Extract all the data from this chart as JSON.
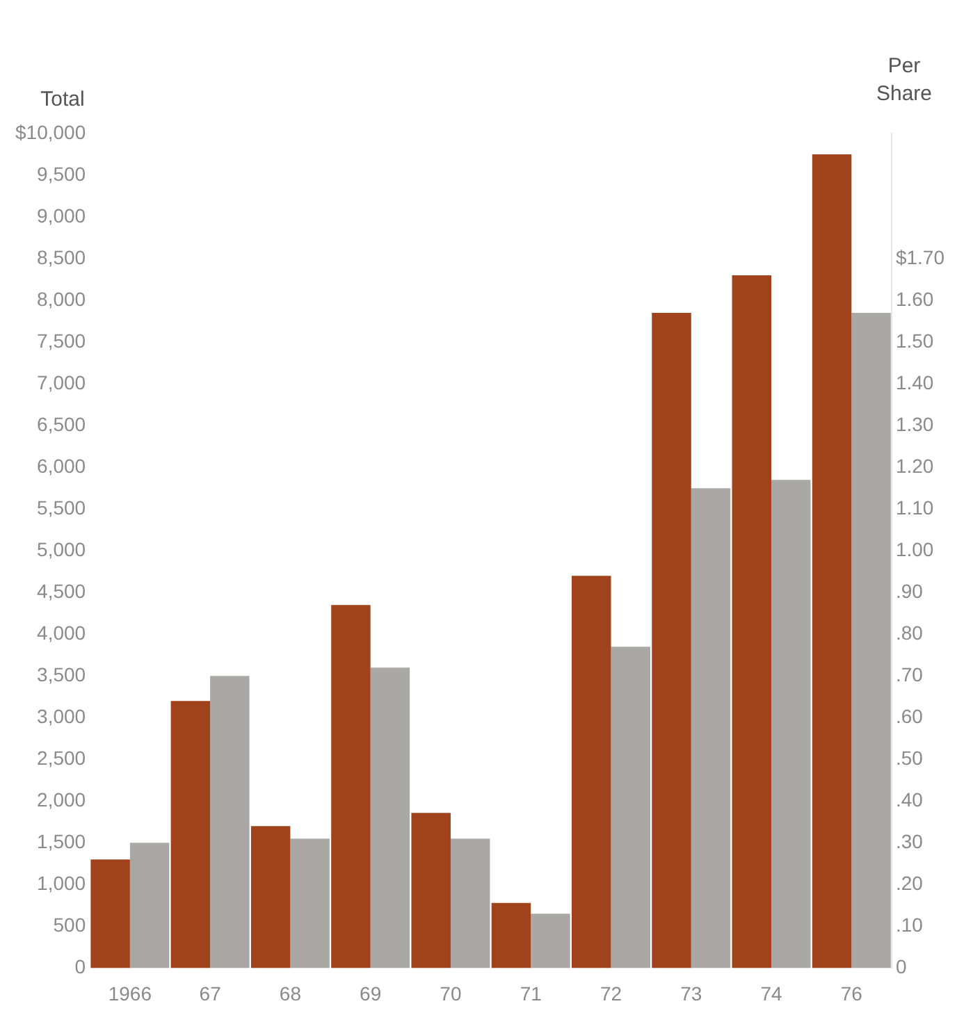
{
  "chart_data": {
    "type": "bar",
    "ylabel": "Total",
    "y2label": "Per Share",
    "categories": [
      "1966",
      "67",
      "68",
      "69",
      "70",
      "71",
      "72",
      "73",
      "74",
      "76"
    ],
    "series": [
      {
        "color": "#a0421c",
        "values": [
          1300,
          3200,
          1700,
          4350,
          1860,
          780,
          4700,
          7850,
          8300,
          9750
        ]
      },
      {
        "color": "#aaa8a5",
        "axis": "y2",
        "values": [
          0.3,
          0.7,
          0.31,
          0.72,
          0.31,
          0.13,
          0.77,
          1.15,
          1.17,
          1.57
        ]
      }
    ],
    "ylim": [
      0,
      10000
    ],
    "yticks": [
      0,
      500,
      {
        "value": 1000,
        "label": "1,000"
      },
      {
        "value": 1500,
        "label": "1,500"
      },
      {
        "value": 2000,
        "label": "2,000"
      },
      {
        "value": 2500,
        "label": "2,500"
      },
      {
        "value": 3000,
        "label": "3,000"
      },
      {
        "value": 3500,
        "label": "3,500"
      },
      {
        "value": 4000,
        "label": "4,000"
      },
      {
        "value": 4500,
        "label": "4,500"
      },
      {
        "value": 5000,
        "label": "5,000"
      },
      {
        "value": 5500,
        "label": "5,500"
      },
      {
        "value": 6000,
        "label": "6,000"
      },
      {
        "value": 6500,
        "label": "6,500"
      },
      {
        "value": 7000,
        "label": "7,000"
      },
      {
        "value": 7500,
        "label": "7,500"
      },
      {
        "value": 8000,
        "label": "8,000"
      },
      {
        "value": 8500,
        "label": "8,500"
      },
      {
        "value": 9000,
        "label": "9,000"
      },
      {
        "value": 9500,
        "label": "9,500"
      },
      {
        "value": 10000,
        "label": "$10,000"
      }
    ],
    "y2lim": [
      0,
      2.0
    ],
    "y2ticks": [
      0,
      {
        "value": 0.1,
        "label": ".10"
      },
      {
        "value": 0.2,
        "label": ".20"
      },
      {
        "value": 0.3,
        "label": ".30"
      },
      {
        "value": 0.4,
        "label": ".40"
      },
      {
        "value": 0.5,
        "label": ".50"
      },
      {
        "value": 0.6,
        "label": ".60"
      },
      {
        "value": 0.7,
        "label": ".70"
      },
      {
        "value": 0.8,
        "label": ".80"
      },
      {
        "value": 0.9,
        "label": ".90"
      },
      {
        "value": 1.0,
        "label": "1.00"
      },
      {
        "value": 1.1,
        "label": "1.10"
      },
      {
        "value": 1.2,
        "label": "1.20"
      },
      {
        "value": 1.3,
        "label": "1.30"
      },
      {
        "value": 1.4,
        "label": "1.40"
      },
      {
        "value": 1.5,
        "label": "1.50"
      },
      {
        "value": 1.6,
        "label": "1.60"
      },
      {
        "value": 1.7,
        "label": "$1.70"
      }
    ],
    "grid": false,
    "legend": false
  }
}
